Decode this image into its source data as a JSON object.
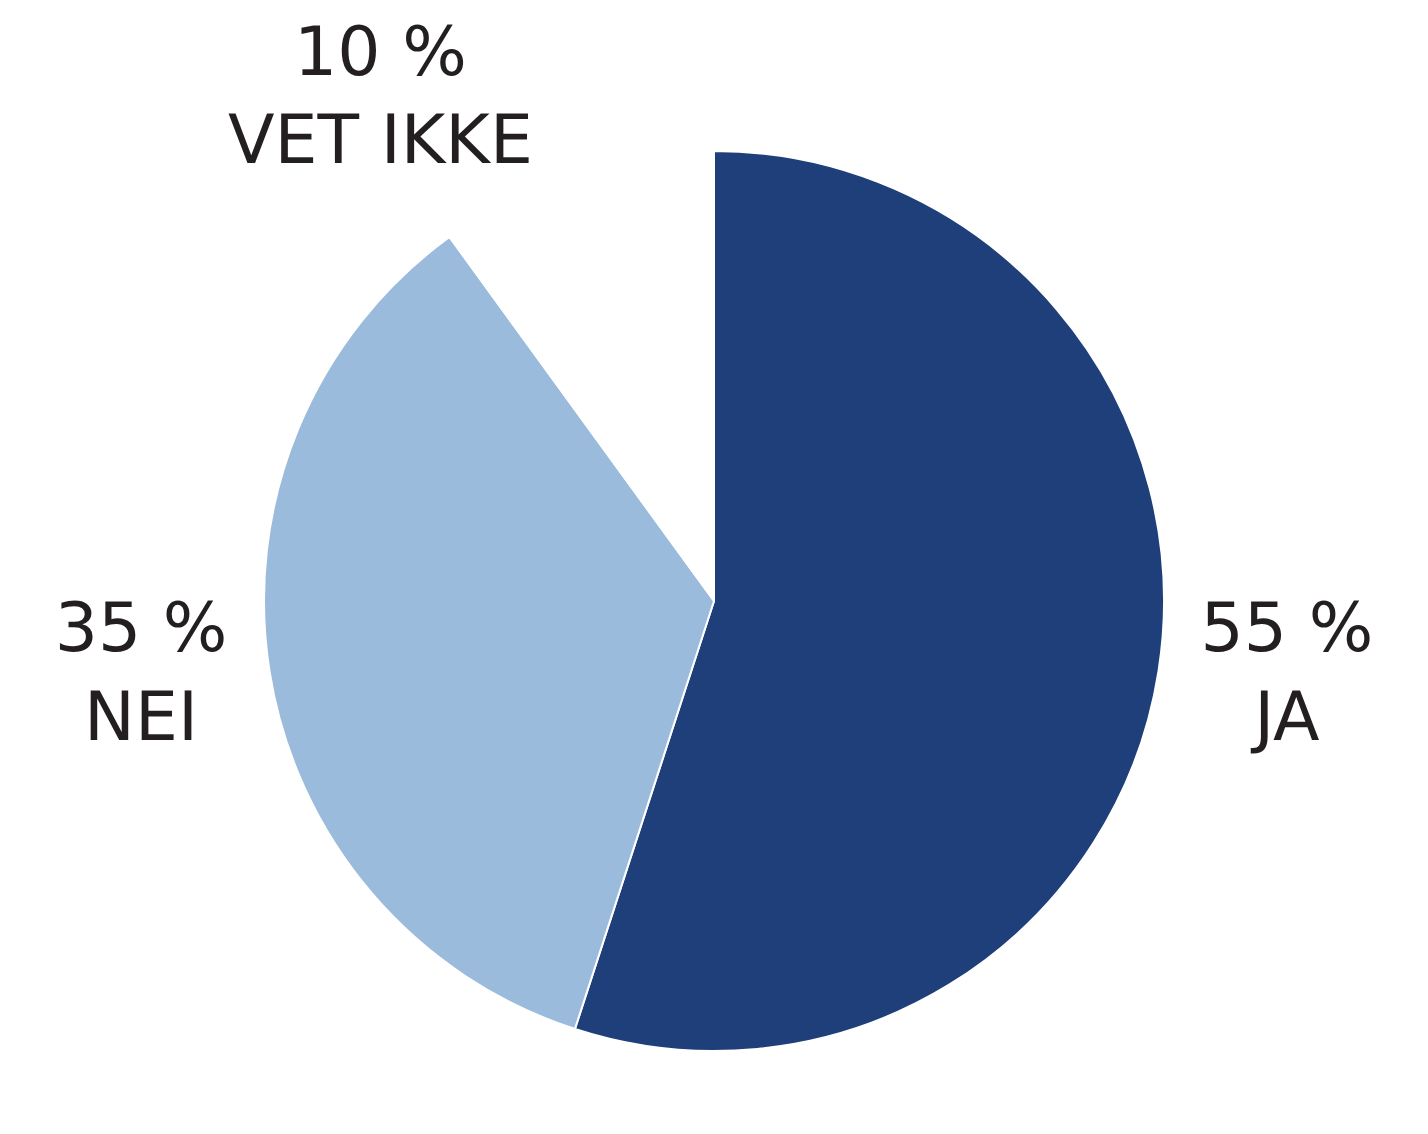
{
  "chart_data": {
    "type": "pie",
    "categories": [
      "JA",
      "NEI",
      "VET IKKE"
    ],
    "values": [
      55,
      35,
      10
    ],
    "value_labels": [
      "55 %",
      "35 %",
      "10 %"
    ],
    "colors": [
      "#1f3f7a",
      "#9bbbdd",
      "#ffffff"
    ],
    "legend": false
  }
}
